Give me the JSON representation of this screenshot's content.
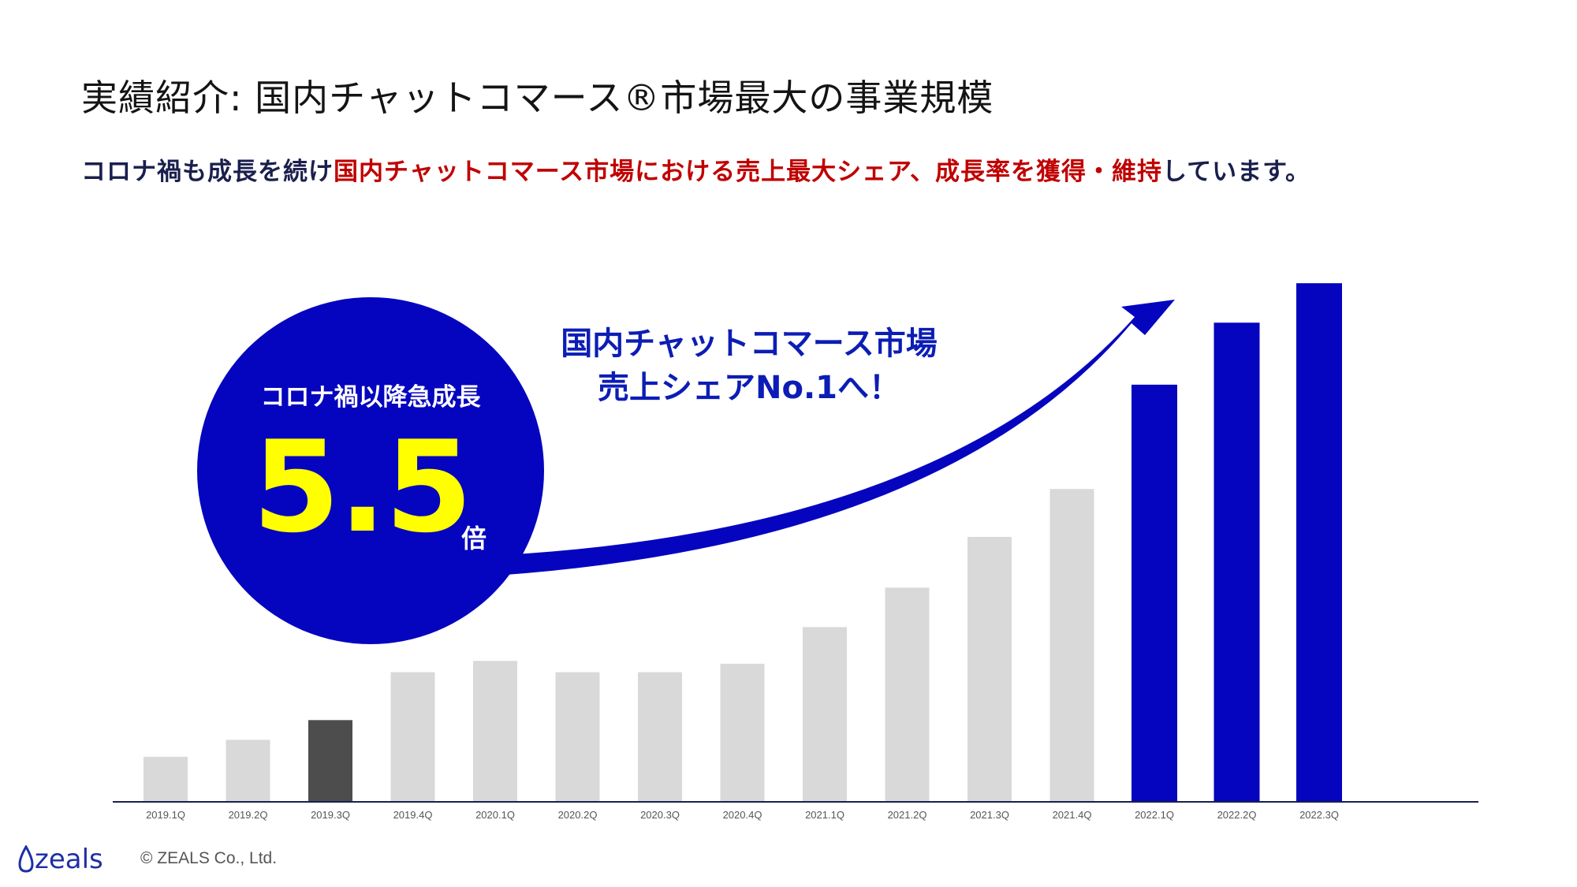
{
  "header": {
    "title": "実績紹介: 国内チャットコマース®市場最大の事業規模",
    "subtitle_part1": "コロナ禍も成長を続け",
    "subtitle_part2": "国内チャットコマース市場における売上最大シェア、成長率を獲得・維持",
    "subtitle_part3": "しています。"
  },
  "callout": {
    "label": "コロナ禍以降急成長",
    "value": "5.5",
    "unit": "倍"
  },
  "arrow_annotation": {
    "line1": "国内チャットコマース市場",
    "line2": "売上シェアNo.1へ！"
  },
  "footer": {
    "logo_text": "zeals",
    "copyright": "© ZEALS Co., Ltd."
  },
  "colors": {
    "bar_default": "#d9d9d9",
    "bar_highlight_dark": "#4d4d4d",
    "bar_highlight_blue": "#0505bf",
    "circle": "#0505bf",
    "arrow": "#0505bf",
    "axis": "#1a1f4d"
  },
  "chart_data": {
    "type": "bar",
    "categories": [
      "2019.1Q",
      "2019.2Q",
      "2019.3Q",
      "2019.4Q",
      "2020.1Q",
      "2020.2Q",
      "2020.3Q",
      "2020.4Q",
      "2021.1Q",
      "2021.2Q",
      "2021.3Q",
      "2021.4Q",
      "2022.1Q",
      "2022.2Q",
      "2022.3Q"
    ],
    "values": [
      8,
      11,
      14.5,
      23,
      25,
      23,
      23,
      24.5,
      31,
      38,
      47,
      55.5,
      74,
      85,
      92
    ],
    "bar_colors": [
      "#d9d9d9",
      "#d9d9d9",
      "#4d4d4d",
      "#d9d9d9",
      "#d9d9d9",
      "#d9d9d9",
      "#d9d9d9",
      "#d9d9d9",
      "#d9d9d9",
      "#d9d9d9",
      "#d9d9d9",
      "#d9d9d9",
      "#0505bf",
      "#0505bf",
      "#0505bf"
    ],
    "title": "",
    "xlabel": "",
    "ylabel": "",
    "ylim": [
      0,
      100
    ],
    "grid": false,
    "legend": "none"
  }
}
